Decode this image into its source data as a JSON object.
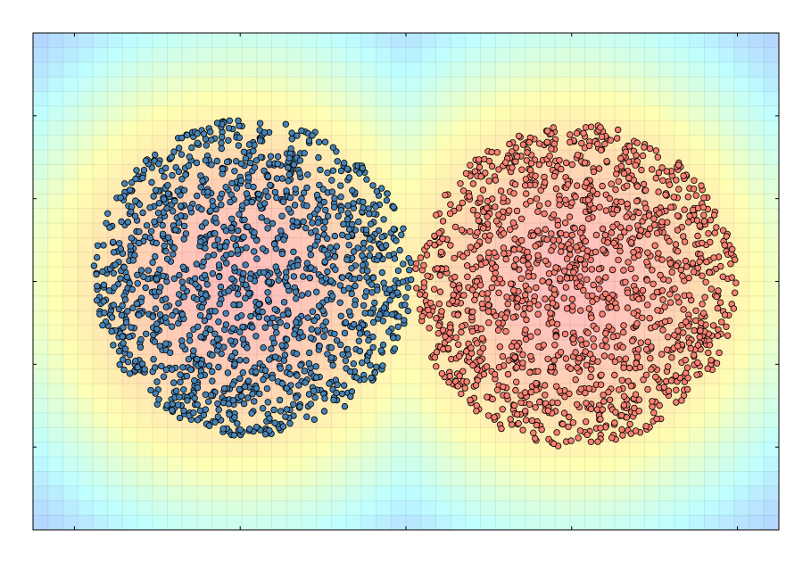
{
  "chart_data": {
    "type": "scatter",
    "title": "",
    "xlabel": "",
    "ylabel": "",
    "xlim": [
      -4.5,
      4.5
    ],
    "ylim": [
      -3,
      3
    ],
    "xticks": [
      -4,
      -2,
      0,
      2,
      4
    ],
    "yticks": [
      -2,
      -1,
      0,
      1,
      2
    ],
    "tick_labels_shown": false,
    "grid": true,
    "legend": "none",
    "background": {
      "type": "heatmap",
      "cmap": [
        "#a5a5ff",
        "#bfffff",
        "#ffffb2",
        "#ffd8b2",
        "#ffbfbf"
      ],
      "description_peaks": [
        [
          -2.0,
          0.0
        ],
        [
          2.0,
          0.0
        ]
      ]
    },
    "series": [
      {
        "color": "#4682b4",
        "edge_color": "#000000",
        "center": [
          -1.85,
          0.05
        ],
        "radius": 1.92,
        "count": 1500,
        "seed": 11
      },
      {
        "color": "#fa8072",
        "edge_color": "#000000",
        "center": [
          2.05,
          -0.05
        ],
        "radius": 1.95,
        "count": 1500,
        "seed": 29
      }
    ]
  }
}
